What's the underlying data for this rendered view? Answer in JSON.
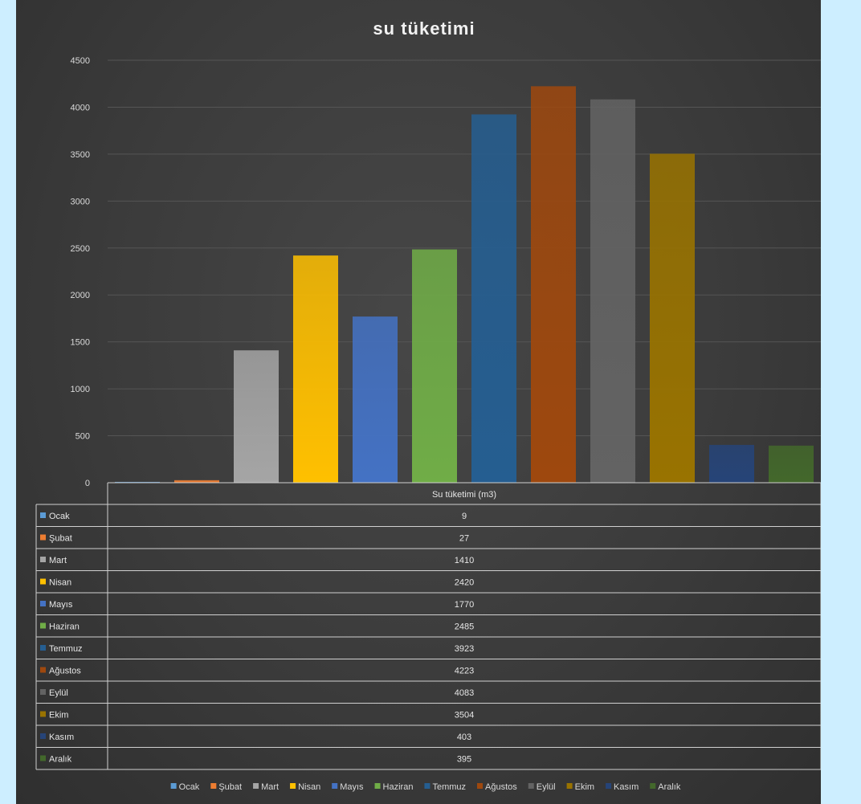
{
  "chart_data": {
    "type": "bar",
    "title": "su tüketimi",
    "series_name": "Su tüketimi (m3)",
    "categories": [
      "Ocak",
      "Şubat",
      "Mart",
      "Nisan",
      "Mayıs",
      "Haziran",
      "Temmuz",
      "Ağustos",
      "Eylül",
      "Ekim",
      "Kasım",
      "Aralık"
    ],
    "values": [
      9,
      27,
      1410,
      2420,
      1770,
      2485,
      3923,
      4223,
      4083,
      3504,
      403,
      395
    ],
    "colors": [
      "#5b9bd5",
      "#ed7d31",
      "#a5a5a5",
      "#ffc000",
      "#4472c4",
      "#70ad47",
      "#255e91",
      "#9e480e",
      "#636363",
      "#997300",
      "#264478",
      "#43682b"
    ],
    "ylim": [
      0,
      4500
    ],
    "yticks": [
      0,
      500,
      1000,
      1500,
      2000,
      2500,
      3000,
      3500,
      4000,
      4500
    ],
    "grid": true,
    "data_table": true,
    "legend_position": "bottom"
  }
}
